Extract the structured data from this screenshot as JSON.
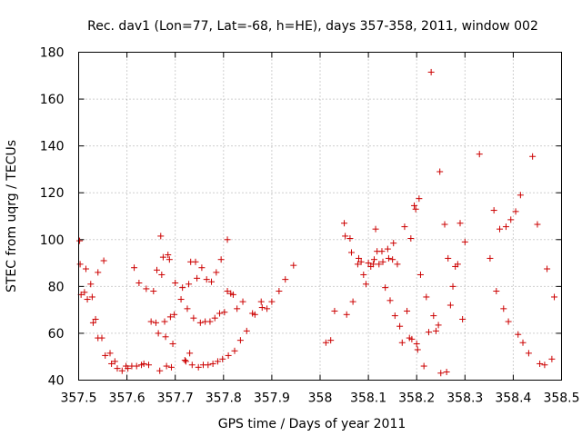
{
  "chart_data": {
    "type": "scatter",
    "title": "Rec. dav1 (Lon=77, Lat=-68, h=HE), days 357-358, 2011, window 002",
    "xlabel": "GPS time / Days of year 2011",
    "ylabel": "STEC from uqrg / TECUs",
    "xlim": [
      357.5,
      358.5
    ],
    "ylim": [
      40,
      180
    ],
    "x_ticks": [
      357.5,
      357.6,
      357.7,
      357.8,
      357.9,
      358.0,
      358.1,
      358.2,
      358.3,
      358.4,
      358.5
    ],
    "x_tick_labels": [
      "357.5",
      "357.6",
      "357.7",
      "357.8",
      "357.9",
      "358",
      "358.1",
      "358.2",
      "358.3",
      "358.4",
      "358.5"
    ],
    "y_ticks": [
      40,
      60,
      80,
      100,
      120,
      140,
      160,
      180
    ],
    "y_tick_labels": [
      "40",
      "60",
      "80",
      "100",
      "120",
      "140",
      "160",
      "180"
    ],
    "grid": true,
    "marker": "+",
    "marker_color": "#cc0000",
    "series": [
      {
        "name": "STEC",
        "points": [
          [
            357.502,
            99.5
          ],
          [
            357.503,
            89.5
          ],
          [
            357.505,
            76.5
          ],
          [
            357.512,
            77.5
          ],
          [
            357.515,
            87.5
          ],
          [
            357.518,
            74.5
          ],
          [
            357.525,
            81
          ],
          [
            357.528,
            75.5
          ],
          [
            357.53,
            64.5
          ],
          [
            357.535,
            66
          ],
          [
            357.54,
            86
          ],
          [
            357.54,
            58
          ],
          [
            357.548,
            58
          ],
          [
            357.552,
            91
          ],
          [
            357.555,
            50.5
          ],
          [
            357.565,
            51.5
          ],
          [
            357.568,
            47
          ],
          [
            357.575,
            48
          ],
          [
            357.58,
            45
          ],
          [
            357.59,
            44
          ],
          [
            357.598,
            46
          ],
          [
            357.602,
            45
          ],
          [
            357.61,
            46
          ],
          [
            357.615,
            88
          ],
          [
            357.62,
            46
          ],
          [
            357.625,
            81.5
          ],
          [
            357.63,
            46.5
          ],
          [
            357.635,
            47
          ],
          [
            357.64,
            79
          ],
          [
            357.645,
            46.5
          ],
          [
            357.655,
            78
          ],
          [
            357.65,
            65
          ],
          [
            357.66,
            64.5
          ],
          [
            357.662,
            87
          ],
          [
            357.665,
            60
          ],
          [
            357.668,
            44
          ],
          [
            357.67,
            101.5
          ],
          [
            357.672,
            85
          ],
          [
            357.675,
            92.5
          ],
          [
            357.678,
            65
          ],
          [
            357.68,
            58.5
          ],
          [
            357.682,
            46
          ],
          [
            357.685,
            93.5
          ],
          [
            357.688,
            91.5
          ],
          [
            357.69,
            67
          ],
          [
            357.692,
            45.5
          ],
          [
            357.695,
            55.5
          ],
          [
            357.698,
            68
          ],
          [
            357.7,
            81.5
          ],
          [
            357.712,
            74.5
          ],
          [
            357.715,
            79.5
          ],
          [
            357.72,
            48.5
          ],
          [
            357.722,
            48
          ],
          [
            357.725,
            70.5
          ],
          [
            357.728,
            81
          ],
          [
            357.73,
            51.5
          ],
          [
            357.732,
            90.5
          ],
          [
            357.735,
            46.5
          ],
          [
            357.738,
            66.5
          ],
          [
            357.742,
            90.5
          ],
          [
            357.745,
            83.5
          ],
          [
            357.748,
            45.5
          ],
          [
            357.752,
            64.5
          ],
          [
            357.755,
            88
          ],
          [
            357.758,
            46.5
          ],
          [
            357.762,
            65
          ],
          [
            357.765,
            83
          ],
          [
            357.768,
            46.5
          ],
          [
            357.772,
            65
          ],
          [
            357.775,
            82
          ],
          [
            357.778,
            47
          ],
          [
            357.782,
            66.5
          ],
          [
            357.785,
            86
          ],
          [
            357.788,
            48
          ],
          [
            357.792,
            68.5
          ],
          [
            357.795,
            91.5
          ],
          [
            357.798,
            49
          ],
          [
            357.802,
            69
          ],
          [
            357.808,
            100
          ],
          [
            357.808,
            78
          ],
          [
            357.81,
            50.5
          ],
          [
            357.815,
            77
          ],
          [
            357.82,
            76.5
          ],
          [
            357.823,
            52.5
          ],
          [
            357.828,
            70.5
          ],
          [
            357.835,
            57
          ],
          [
            357.84,
            73.5
          ],
          [
            357.848,
            61
          ],
          [
            357.86,
            68.5
          ],
          [
            357.865,
            68
          ],
          [
            357.878,
            73.5
          ],
          [
            357.88,
            71
          ],
          [
            357.89,
            70.5
          ],
          [
            357.9,
            73.5
          ],
          [
            357.915,
            78
          ],
          [
            357.928,
            83
          ],
          [
            357.945,
            89
          ],
          [
            358.012,
            56
          ],
          [
            358.022,
            57
          ],
          [
            358.03,
            69.5
          ],
          [
            358.05,
            107
          ],
          [
            358.052,
            101.5
          ],
          [
            358.055,
            68
          ],
          [
            358.062,
            100.5
          ],
          [
            358.065,
            94.5
          ],
          [
            358.068,
            73.5
          ],
          [
            358.078,
            89.5
          ],
          [
            358.08,
            92
          ],
          [
            358.085,
            90.5
          ],
          [
            358.09,
            85
          ],
          [
            358.095,
            81
          ],
          [
            358.1,
            90
          ],
          [
            358.105,
            88.5
          ],
          [
            358.11,
            89.5
          ],
          [
            358.112,
            91.5
          ],
          [
            358.115,
            104.5
          ],
          [
            358.118,
            95
          ],
          [
            358.122,
            89.5
          ],
          [
            358.128,
            95
          ],
          [
            358.13,
            90.5
          ],
          [
            358.135,
            79.5
          ],
          [
            358.14,
            96
          ],
          [
            358.142,
            92
          ],
          [
            358.145,
            74
          ],
          [
            358.15,
            91.5
          ],
          [
            358.152,
            98.5
          ],
          [
            358.155,
            67.5
          ],
          [
            358.16,
            89.5
          ],
          [
            358.165,
            63
          ],
          [
            358.17,
            56
          ],
          [
            358.175,
            105.5
          ],
          [
            358.18,
            69.5
          ],
          [
            358.185,
            58
          ],
          [
            358.188,
            100.5
          ],
          [
            358.19,
            57.5
          ],
          [
            358.195,
            114.5
          ],
          [
            358.198,
            113
          ],
          [
            358.2,
            55.5
          ],
          [
            358.202,
            53
          ],
          [
            358.205,
            117.5
          ],
          [
            358.208,
            85
          ],
          [
            358.215,
            46
          ],
          [
            358.22,
            75.5
          ],
          [
            358.225,
            60.5
          ],
          [
            358.23,
            171.5
          ],
          [
            358.235,
            67.5
          ],
          [
            358.24,
            61
          ],
          [
            358.245,
            63.5
          ],
          [
            358.248,
            129
          ],
          [
            358.25,
            43
          ],
          [
            358.258,
            106.5
          ],
          [
            358.262,
            43.5
          ],
          [
            358.265,
            92
          ],
          [
            358.27,
            72
          ],
          [
            358.275,
            80
          ],
          [
            358.28,
            88.5
          ],
          [
            358.285,
            89.5
          ],
          [
            358.29,
            107
          ],
          [
            358.295,
            66
          ],
          [
            358.3,
            99
          ],
          [
            358.33,
            136.5
          ],
          [
            358.352,
            92
          ],
          [
            358.36,
            112.5
          ],
          [
            358.365,
            78
          ],
          [
            358.372,
            104.5
          ],
          [
            358.38,
            70.5
          ],
          [
            358.385,
            105.5
          ],
          [
            358.39,
            65
          ],
          [
            358.395,
            108.5
          ],
          [
            358.405,
            112
          ],
          [
            358.41,
            59.5
          ],
          [
            358.415,
            119
          ],
          [
            358.42,
            56
          ],
          [
            358.432,
            51.5
          ],
          [
            358.44,
            135.5
          ],
          [
            358.45,
            106.5
          ],
          [
            358.455,
            47
          ],
          [
            358.465,
            46.5
          ],
          [
            358.47,
            87.5
          ],
          [
            358.48,
            49
          ],
          [
            358.485,
            75.5
          ]
        ]
      }
    ]
  }
}
